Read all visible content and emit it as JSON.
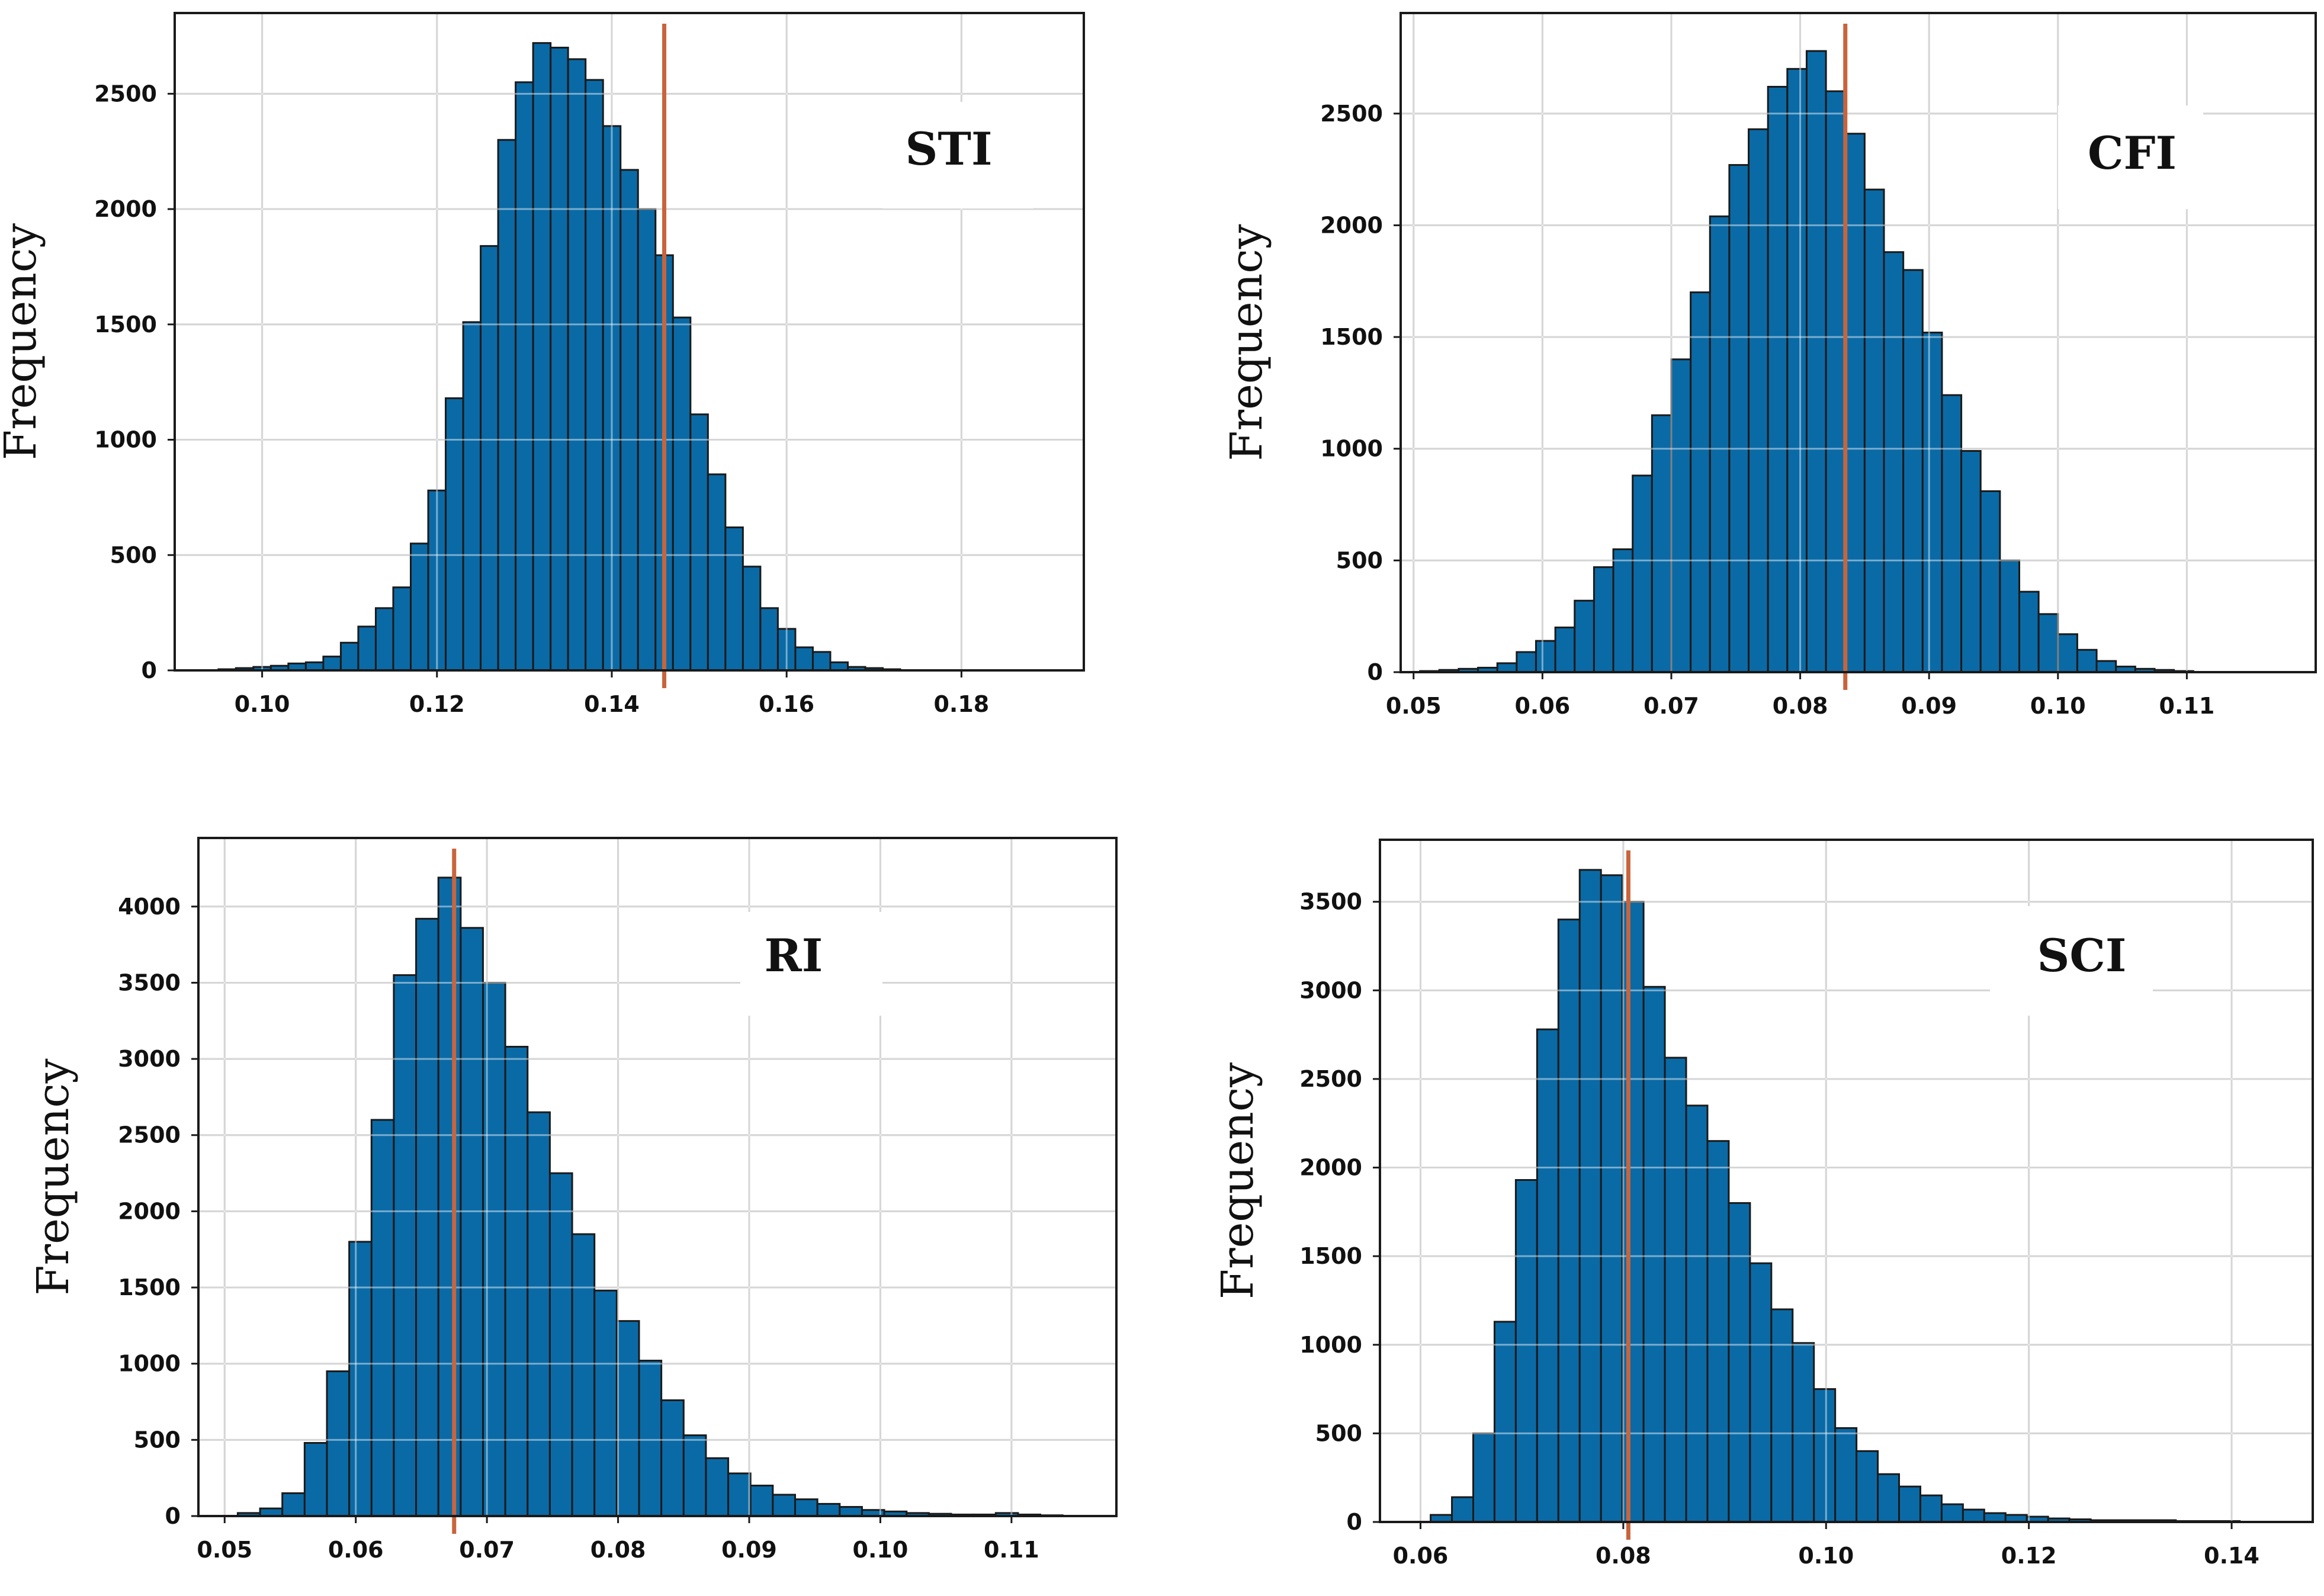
{
  "colors": {
    "bar_fill": "#0a6aa6",
    "bar_edge": "#1a1a1a",
    "mean_line": "#c8643c",
    "grid": "#b4b4b4",
    "title_box": "#ffffff"
  },
  "chart_data": [
    {
      "type": "bar",
      "title": "STI",
      "xlabel": "",
      "ylabel": "Frequency",
      "xlim": [
        0.09,
        0.194
      ],
      "ylim": [
        0,
        2850
      ],
      "xticks": [
        0.1,
        0.12,
        0.14,
        0.16,
        0.18
      ],
      "xtick_labels": [
        "0.10",
        "0.12",
        "0.14",
        "0.16",
        "0.18"
      ],
      "yticks": [
        0,
        500,
        1000,
        1500,
        2000,
        2500
      ],
      "ytick_labels": [
        "0",
        "500",
        "1000",
        "1500",
        "2000",
        "2500"
      ],
      "grid": true,
      "mean_value": 0.146,
      "bin_start": 0.095,
      "bin_width": 0.002,
      "values": [
        5,
        10,
        15,
        20,
        30,
        35,
        60,
        120,
        190,
        270,
        360,
        550,
        780,
        1180,
        1510,
        1840,
        2300,
        2550,
        2720,
        2700,
        2650,
        2560,
        2360,
        2170,
        2000,
        1800,
        1530,
        1110,
        850,
        620,
        450,
        270,
        180,
        100,
        80,
        35,
        15,
        10,
        5
      ]
    },
    {
      "type": "bar",
      "title": "CFI",
      "xlabel": "",
      "ylabel": "Frequency",
      "xlim": [
        0.049,
        0.12
      ],
      "ylim": [
        0,
        2950
      ],
      "xticks": [
        0.05,
        0.06,
        0.07,
        0.08,
        0.09,
        0.1,
        0.11
      ],
      "xtick_labels": [
        "0.05",
        "0.06",
        "0.07",
        "0.08",
        "0.09",
        "0.10",
        "0.11"
      ],
      "yticks": [
        0,
        500,
        1000,
        1500,
        2000,
        2500
      ],
      "ytick_labels": [
        "0",
        "500",
        "1000",
        "1500",
        "2000",
        "2500"
      ],
      "grid": true,
      "mean_value": 0.0835,
      "bin_start": 0.0505,
      "bin_width": 0.0015,
      "values": [
        5,
        10,
        15,
        20,
        40,
        90,
        140,
        200,
        320,
        470,
        550,
        880,
        1150,
        1400,
        1700,
        2040,
        2270,
        2430,
        2620,
        2700,
        2780,
        2600,
        2410,
        2160,
        1880,
        1800,
        1520,
        1240,
        990,
        810,
        500,
        360,
        260,
        170,
        100,
        50,
        25,
        15,
        10,
        5
      ]
    },
    {
      "type": "bar",
      "title": "RI",
      "xlabel": "",
      "ylabel": "Frequency",
      "xlim": [
        0.048,
        0.118
      ],
      "ylim": [
        0,
        4450
      ],
      "xticks": [
        0.05,
        0.06,
        0.07,
        0.08,
        0.09,
        0.1,
        0.11
      ],
      "xtick_labels": [
        "0.05",
        "0.06",
        "0.07",
        "0.08",
        "0.09",
        "0.10",
        "0.11"
      ],
      "yticks": [
        0,
        500,
        1000,
        1500,
        2000,
        2500,
        3000,
        3500,
        4000
      ],
      "ytick_labels": [
        "0",
        "500",
        "1000",
        "1500",
        "2000",
        "2500",
        "3000",
        "3500",
        "4000"
      ],
      "grid": true,
      "mean_value": 0.0675,
      "bin_start": 0.051,
      "bin_width": 0.0017,
      "values": [
        20,
        50,
        150,
        480,
        950,
        1800,
        2600,
        3550,
        3920,
        4190,
        3860,
        3500,
        3080,
        2650,
        2250,
        1850,
        1480,
        1280,
        1020,
        760,
        530,
        380,
        280,
        200,
        140,
        110,
        80,
        60,
        40,
        30,
        20,
        15,
        10,
        10,
        20,
        10,
        5
      ]
    },
    {
      "type": "bar",
      "title": "SCI",
      "xlabel": "",
      "ylabel": "Frequency",
      "xlim": [
        0.056,
        0.148
      ],
      "ylim": [
        0,
        3850
      ],
      "xticks": [
        0.06,
        0.08,
        0.1,
        0.12,
        0.14
      ],
      "xtick_labels": [
        "0.06",
        "0.08",
        "0.10",
        "0.12",
        "0.14"
      ],
      "yticks": [
        0,
        500,
        1000,
        1500,
        2000,
        2500,
        3000,
        3500
      ],
      "ytick_labels": [
        "0",
        "500",
        "1000",
        "1500",
        "2000",
        "2500",
        "3000",
        "3500"
      ],
      "grid": true,
      "mean_value": 0.0805,
      "bin_start": 0.061,
      "bin_width": 0.0021,
      "values": [
        40,
        140,
        500,
        1130,
        1930,
        2780,
        3400,
        3680,
        3650,
        3500,
        3020,
        2620,
        2350,
        2150,
        1800,
        1460,
        1200,
        1010,
        750,
        530,
        400,
        270,
        200,
        150,
        100,
        70,
        50,
        40,
        30,
        20,
        15,
        10,
        10,
        10,
        10,
        5,
        5,
        5
      ]
    }
  ]
}
